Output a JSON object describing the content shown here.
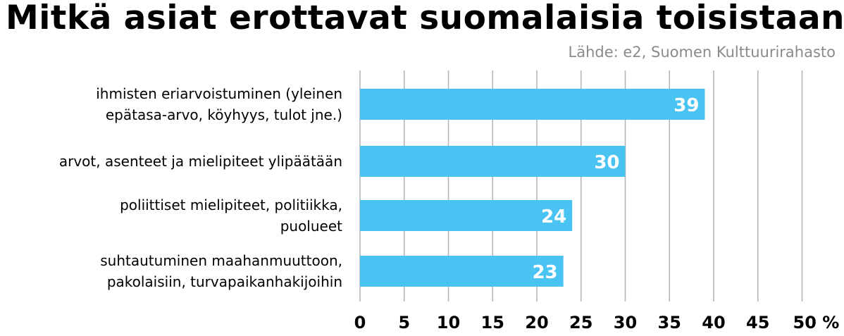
{
  "chart_data": {
    "type": "bar",
    "orientation": "horizontal",
    "title": "Mitkä asiat erottavat suomalaisia toisistaan?",
    "source": "Lähde: e2, Suomen Kulttuurirahasto",
    "categories": [
      [
        "ihmisten eriarvoistuminen (yleinen",
        "epätasa-arvo, köyhyys, tulot jne.)"
      ],
      [
        "arvot, asenteet ja mielipiteet ylipäätään"
      ],
      [
        "poliittiset mielipiteet, politiikka,",
        "puolueet"
      ],
      [
        "suhtautuminen maahanmuuttoon,",
        "pakolaisiin, turvapaikanhakijoihin"
      ]
    ],
    "values": [
      39,
      30,
      24,
      23
    ],
    "value_labels": [
      "39",
      "30",
      "24",
      "23"
    ],
    "xlim": [
      0,
      52
    ],
    "ticks": [
      0,
      5,
      10,
      15,
      20,
      25,
      30,
      35,
      40,
      45,
      50
    ],
    "tick_labels": [
      "0",
      "5",
      "10",
      "15",
      "20",
      "25",
      "30",
      "35",
      "40",
      "45",
      "50 %"
    ],
    "grid": true,
    "colors": {
      "bar": "#49c3f2",
      "grid": "#b3b3b3",
      "source": "#8a8a8a"
    }
  }
}
